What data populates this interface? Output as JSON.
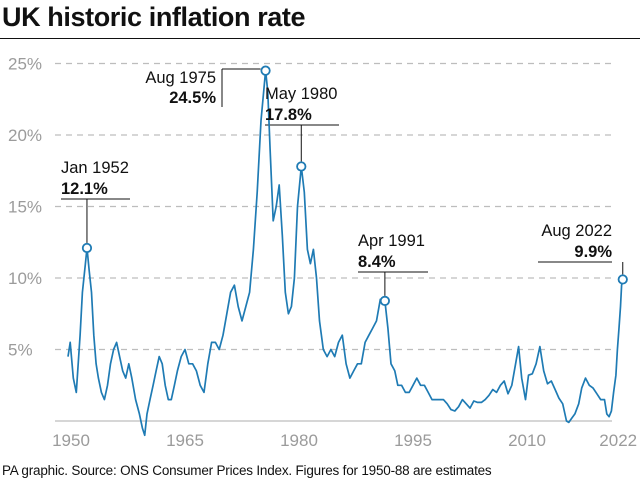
{
  "title": "UK historic inflation rate",
  "source": "PA graphic. Source: ONS Consumer Prices Index. Figures for 1950-88 are estimates",
  "colors": {
    "line": "#1f7bb4",
    "grid": "#bdbdbd",
    "axis": "#9b9b9b",
    "text": "#111111",
    "marker_fill": "#ffffff"
  },
  "chart_data": {
    "type": "line",
    "title": "UK historic inflation rate",
    "ylim": [
      0,
      25
    ],
    "xlim": [
      1950,
      2022.7
    ],
    "y_ticks": [
      {
        "value": 5,
        "label": "5%"
      },
      {
        "value": 10,
        "label": "10%"
      },
      {
        "value": 15,
        "label": "15%"
      },
      {
        "value": 20,
        "label": "20%"
      },
      {
        "value": 25,
        "label": "25%"
      }
    ],
    "x_ticks": [
      {
        "value": 1950,
        "label": "1950"
      },
      {
        "value": 1965,
        "label": "1965"
      },
      {
        "value": 1980,
        "label": "1980"
      },
      {
        "value": 1995,
        "label": "1995"
      },
      {
        "value": 2010,
        "label": "2010"
      },
      {
        "value": 2022,
        "label": "2022"
      }
    ],
    "grid": "horizontal dashed",
    "series": [
      {
        "points": [
          [
            1949.6,
            4.5
          ],
          [
            1949.9,
            5.5
          ],
          [
            1950.3,
            3
          ],
          [
            1950.7,
            2
          ],
          [
            1951.2,
            6
          ],
          [
            1951.5,
            9
          ],
          [
            1951.9,
            11
          ],
          [
            1952.1,
            12.1
          ],
          [
            1952.4,
            10.5
          ],
          [
            1952.7,
            9
          ],
          [
            1953.0,
            6
          ],
          [
            1953.3,
            4
          ],
          [
            1953.6,
            3
          ],
          [
            1954.0,
            2
          ],
          [
            1954.4,
            1.5
          ],
          [
            1954.8,
            2.5
          ],
          [
            1955.2,
            4
          ],
          [
            1955.6,
            5
          ],
          [
            1956.0,
            5.5
          ],
          [
            1956.4,
            4.5
          ],
          [
            1956.8,
            3.5
          ],
          [
            1957.2,
            3
          ],
          [
            1957.6,
            4
          ],
          [
            1958.0,
            3
          ],
          [
            1958.5,
            1.5
          ],
          [
            1959.0,
            0.5
          ],
          [
            1959.4,
            -0.5
          ],
          [
            1959.7,
            -1
          ],
          [
            1960.0,
            0.5
          ],
          [
            1960.4,
            1.5
          ],
          [
            1960.8,
            2.5
          ],
          [
            1961.2,
            3.5
          ],
          [
            1961.6,
            4.5
          ],
          [
            1962.0,
            4
          ],
          [
            1962.4,
            2.5
          ],
          [
            1962.8,
            1.5
          ],
          [
            1963.2,
            1.5
          ],
          [
            1963.6,
            2.5
          ],
          [
            1964.0,
            3.5
          ],
          [
            1964.5,
            4.5
          ],
          [
            1965.0,
            5
          ],
          [
            1965.5,
            4
          ],
          [
            1966.0,
            4
          ],
          [
            1966.5,
            3.5
          ],
          [
            1967.0,
            2.5
          ],
          [
            1967.5,
            2
          ],
          [
            1968.0,
            4
          ],
          [
            1968.5,
            5.5
          ],
          [
            1969.0,
            5.5
          ],
          [
            1969.5,
            5
          ],
          [
            1970.0,
            6
          ],
          [
            1970.5,
            7.5
          ],
          [
            1971.0,
            9
          ],
          [
            1971.5,
            9.5
          ],
          [
            1972.0,
            8
          ],
          [
            1972.5,
            7
          ],
          [
            1973.0,
            8
          ],
          [
            1973.5,
            9
          ],
          [
            1974.0,
            12
          ],
          [
            1974.5,
            16
          ],
          [
            1975.0,
            21
          ],
          [
            1975.6,
            24.5
          ],
          [
            1975.9,
            23
          ],
          [
            1976.2,
            19
          ],
          [
            1976.6,
            14
          ],
          [
            1977.0,
            15
          ],
          [
            1977.4,
            16.5
          ],
          [
            1977.8,
            13
          ],
          [
            1978.2,
            9
          ],
          [
            1978.6,
            7.5
          ],
          [
            1979.0,
            8
          ],
          [
            1979.4,
            10
          ],
          [
            1979.8,
            15
          ],
          [
            1980.3,
            17.8
          ],
          [
            1980.7,
            16
          ],
          [
            1981.1,
            12
          ],
          [
            1981.5,
            11
          ],
          [
            1981.9,
            12
          ],
          [
            1982.3,
            10
          ],
          [
            1982.7,
            7
          ],
          [
            1983.2,
            5
          ],
          [
            1983.7,
            4.5
          ],
          [
            1984.2,
            5
          ],
          [
            1984.7,
            4.5
          ],
          [
            1985.2,
            5.5
          ],
          [
            1985.7,
            6
          ],
          [
            1986.2,
            4
          ],
          [
            1986.7,
            3
          ],
          [
            1987.2,
            3.5
          ],
          [
            1987.7,
            4
          ],
          [
            1988.2,
            4
          ],
          [
            1988.7,
            5.5
          ],
          [
            1989.2,
            6
          ],
          [
            1989.7,
            6.5
          ],
          [
            1990.2,
            7
          ],
          [
            1990.7,
            8.5
          ],
          [
            1991.3,
            8.4
          ],
          [
            1991.7,
            6.5
          ],
          [
            1992.1,
            4
          ],
          [
            1992.6,
            3.5
          ],
          [
            1993.0,
            2.5
          ],
          [
            1993.5,
            2.5
          ],
          [
            1994.0,
            2
          ],
          [
            1994.5,
            2
          ],
          [
            1995.0,
            2.5
          ],
          [
            1995.5,
            3
          ],
          [
            1996.0,
            2.5
          ],
          [
            1996.5,
            2.5
          ],
          [
            1997.0,
            2
          ],
          [
            1997.5,
            1.5
          ],
          [
            1998.0,
            1.5
          ],
          [
            1998.5,
            1.5
          ],
          [
            1999.0,
            1.5
          ],
          [
            1999.5,
            1.2
          ],
          [
            2000.0,
            0.8
          ],
          [
            2000.5,
            0.7
          ],
          [
            2001.0,
            1
          ],
          [
            2001.5,
            1.5
          ],
          [
            2002.0,
            1.2
          ],
          [
            2002.5,
            0.9
          ],
          [
            2003.0,
            1.4
          ],
          [
            2003.5,
            1.3
          ],
          [
            2004.0,
            1.3
          ],
          [
            2004.5,
            1.5
          ],
          [
            2005.0,
            1.8
          ],
          [
            2005.5,
            2.2
          ],
          [
            2006.0,
            2
          ],
          [
            2006.5,
            2.5
          ],
          [
            2007.0,
            2.8
          ],
          [
            2007.5,
            1.9
          ],
          [
            2008.0,
            2.5
          ],
          [
            2008.5,
            4
          ],
          [
            2008.9,
            5.2
          ],
          [
            2009.3,
            3
          ],
          [
            2009.8,
            1.5
          ],
          [
            2010.2,
            3.2
          ],
          [
            2010.7,
            3.3
          ],
          [
            2011.2,
            4
          ],
          [
            2011.7,
            5.2
          ],
          [
            2012.2,
            3.5
          ],
          [
            2012.7,
            2.6
          ],
          [
            2013.2,
            2.8
          ],
          [
            2013.7,
            2.2
          ],
          [
            2014.2,
            1.6
          ],
          [
            2014.7,
            1.2
          ],
          [
            2015.2,
            0
          ],
          [
            2015.5,
            -0.1
          ],
          [
            2015.9,
            0.2
          ],
          [
            2016.3,
            0.5
          ],
          [
            2016.8,
            1.2
          ],
          [
            2017.2,
            2.3
          ],
          [
            2017.7,
            3
          ],
          [
            2018.2,
            2.5
          ],
          [
            2018.7,
            2.3
          ],
          [
            2019.2,
            1.9
          ],
          [
            2019.7,
            1.5
          ],
          [
            2020.2,
            1.5
          ],
          [
            2020.5,
            0.5
          ],
          [
            2020.8,
            0.3
          ],
          [
            2021.1,
            0.7
          ],
          [
            2021.4,
            2
          ],
          [
            2021.7,
            3.2
          ],
          [
            2021.9,
            5
          ],
          [
            2022.1,
            6.5
          ],
          [
            2022.3,
            8
          ],
          [
            2022.45,
            9.5
          ],
          [
            2022.6,
            9.9
          ]
        ]
      }
    ],
    "annotations": [
      {
        "date": "Jan 1952",
        "value": "12.1%",
        "x": 1952.1,
        "y": 12.1
      },
      {
        "date": "Aug 1975",
        "value": "24.5%",
        "x": 1975.6,
        "y": 24.5
      },
      {
        "date": "May 1980",
        "value": "17.8%",
        "x": 1980.3,
        "y": 17.8
      },
      {
        "date": "Apr 1991",
        "value": "8.4%",
        "x": 1991.3,
        "y": 8.4
      },
      {
        "date": "Aug 2022",
        "value": "9.9%",
        "x": 2022.6,
        "y": 9.9
      }
    ]
  }
}
